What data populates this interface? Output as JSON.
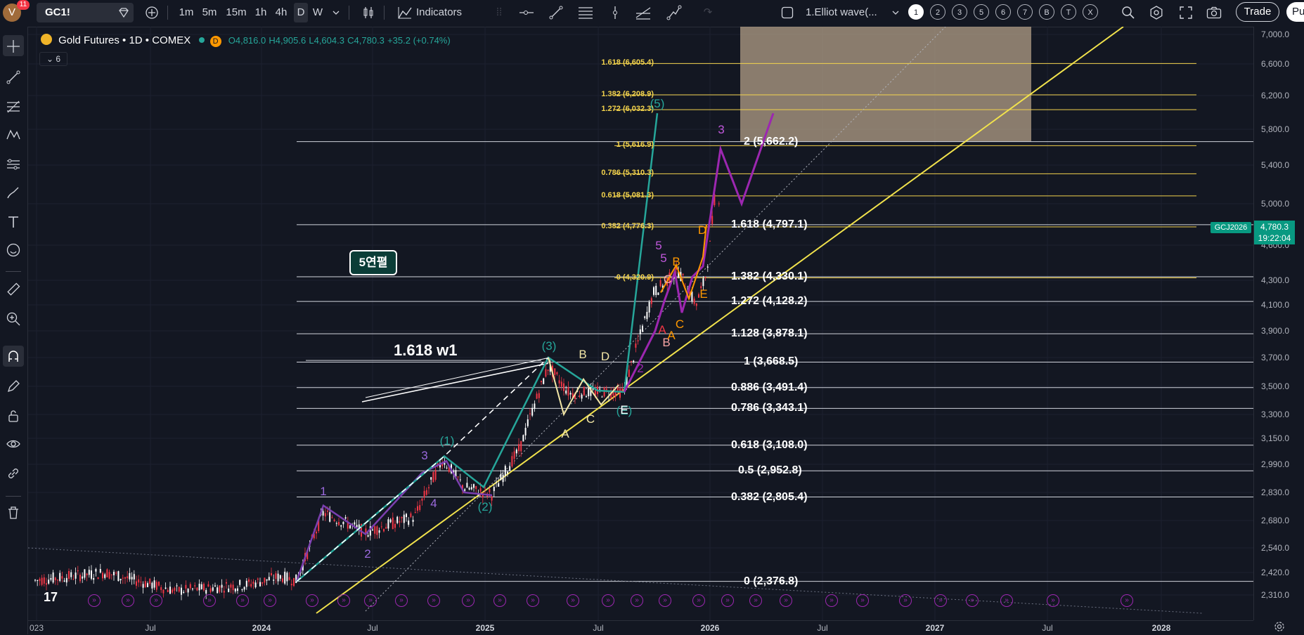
{
  "topbar": {
    "avatar_letter": "V",
    "notifications": "11",
    "symbol": "GC1!",
    "intervals": [
      "1m",
      "5m",
      "15m",
      "1h",
      "4h",
      "D",
      "W"
    ],
    "active_interval": "D",
    "indicators_label": "Indicators",
    "layout_name": "1.Elliot wave(...",
    "layout_tabs": [
      "1",
      "2",
      "3",
      "5",
      "6",
      "7",
      "B",
      "T",
      "X"
    ],
    "active_layout_tab": "1",
    "trade_label": "Trade",
    "publish_label": "Pu"
  },
  "legend": {
    "title": "Gold Futures • 1D • COMEX",
    "market_badge": "D",
    "open": "O4,816.0",
    "high": "H4,905.6",
    "low": "L4,604.3",
    "close": "C4,780.3",
    "change": "+35.2 (+0.74%)",
    "collapsed_count": "6"
  },
  "price_scale": {
    "labels": [
      {
        "price": 7000,
        "text": "7,000.0"
      },
      {
        "price": 6600,
        "text": "6,600.0"
      },
      {
        "price": 6200,
        "text": "6,200.0"
      },
      {
        "price": 5800,
        "text": "5,800.0"
      },
      {
        "price": 5400,
        "text": "5,400.0"
      },
      {
        "price": 5000,
        "text": "5,000.0"
      },
      {
        "price": 4600,
        "text": "4,600.0"
      },
      {
        "price": 4300,
        "text": "4,300.0"
      },
      {
        "price": 4100,
        "text": "4,100.0"
      },
      {
        "price": 3900,
        "text": "3,900.0"
      },
      {
        "price": 3700,
        "text": "3,700.0"
      },
      {
        "price": 3500,
        "text": "3,500.0"
      },
      {
        "price": 3300,
        "text": "3,300.0"
      },
      {
        "price": 3150,
        "text": "3,150.0"
      },
      {
        "price": 2990,
        "text": "2,990.0"
      },
      {
        "price": 2830,
        "text": "2,830.0"
      },
      {
        "price": 2680,
        "text": "2,680.0"
      },
      {
        "price": 2540,
        "text": "2,540.0"
      },
      {
        "price": 2420,
        "text": "2,420.0"
      },
      {
        "price": 2310,
        "text": "2,310.0"
      }
    ],
    "last_price": "4,780.3",
    "countdown": "19:22:04",
    "symbol_tag": "GCJ2026"
  },
  "time_scale": [
    {
      "text": "023",
      "year": false
    },
    {
      "text": "Jul",
      "year": false
    },
    {
      "text": "2024",
      "year": true
    },
    {
      "text": "Jul",
      "year": false
    },
    {
      "text": "2025",
      "year": true
    },
    {
      "text": "Jul",
      "year": false
    },
    {
      "text": "2026",
      "year": true
    },
    {
      "text": "Jul",
      "year": false
    },
    {
      "text": "2027",
      "year": true
    },
    {
      "text": "Jul",
      "year": false
    },
    {
      "text": "2028",
      "year": true
    }
  ],
  "fib_white": [
    {
      "text": "2 (5,662.2)",
      "price": 5662.2
    },
    {
      "text": "1.618 (4,797.1)",
      "price": 4797.1
    },
    {
      "text": "1.382 (4,330.1)",
      "price": 4330.1
    },
    {
      "text": "1.272 (4,128.2)",
      "price": 4128.2
    },
    {
      "text": "1.128 (3,878.1)",
      "price": 3878.1
    },
    {
      "text": "1 (3,668.5)",
      "price": 3668.5
    },
    {
      "text": "0.886 (3,491.4)",
      "price": 3491.4
    },
    {
      "text": "0.786 (3,343.1)",
      "price": 3343.1
    },
    {
      "text": "0.618 (3,108.0)",
      "price": 3108.0
    },
    {
      "text": "0.5 (2,952.8)",
      "price": 2952.8
    },
    {
      "text": "0.382 (2,805.4)",
      "price": 2805.4
    },
    {
      "text": "0 (2,376.8)",
      "price": 2376.8
    }
  ],
  "fib_yellow": [
    {
      "text": "1.618 (6,605.4)",
      "price": 6605.4
    },
    {
      "text": "1.382 (6,208.9)",
      "price": 6208.9
    },
    {
      "text": "1.272 (6,032.3)",
      "price": 6032.3
    },
    {
      "text": "1 (5,616.9)",
      "price": 5616.9
    },
    {
      "text": "0.786 (5,310.3)",
      "price": 5310.3
    },
    {
      "text": "0.618 (5,081.3)",
      "price": 5081.3
    },
    {
      "text": "0.382 (4,776.3)",
      "price": 4776.3
    },
    {
      "text": "0 (4,320.9)",
      "price": 4320.9
    }
  ],
  "annotations": {
    "callout": "5연펼",
    "w1_label": "1.618 w1",
    "tv_logo": "17"
  },
  "wave_labels": [
    {
      "text": "1",
      "color": "#9c6ade"
    },
    {
      "text": "2",
      "color": "#9c6ade"
    },
    {
      "text": "3",
      "color": "#9c6ade"
    },
    {
      "text": "4",
      "color": "#9c6ade"
    },
    {
      "text": "(1)",
      "color": "#26a69a"
    },
    {
      "text": "(2)",
      "color": "#26a69a"
    },
    {
      "text": "(3)",
      "color": "#26a69a"
    },
    {
      "text": "(E)",
      "color": "#26a69a"
    },
    {
      "text": "(5)",
      "color": "#26a69a"
    },
    {
      "text": "A",
      "color": "#f2e6a6"
    },
    {
      "text": "B",
      "color": "#f2e6a6"
    },
    {
      "text": "C",
      "color": "#f2e6a6"
    },
    {
      "text": "D",
      "color": "#f2e6a6"
    },
    {
      "text": "E",
      "color": "#ffffff"
    },
    {
      "text": "2",
      "color": "#9c27b0"
    },
    {
      "text": "3",
      "color": "#c158dc"
    },
    {
      "text": "5",
      "color": "#c158dc"
    },
    {
      "text": "5",
      "color": "#c158dc"
    },
    {
      "text": "B",
      "color": "#ff9800"
    },
    {
      "text": "C",
      "color": "#ff9800"
    },
    {
      "text": "D",
      "color": "#ff9800"
    },
    {
      "text": "E",
      "color": "#ff9800"
    },
    {
      "text": "A",
      "color": "#f23645"
    },
    {
      "text": "B",
      "color": "#f8a5a5"
    },
    {
      "text": "C",
      "color": "#f8a5a5"
    },
    {
      "text": "A",
      "color": "#ff9800"
    }
  ],
  "colors": {
    "background": "#131722",
    "fib_white": "#d1d4dc",
    "fib_yellow": "#f2d24c",
    "wave_teal": "#26a69a",
    "wave_purple": "#9c27b0",
    "up_candle": "#ffffff",
    "down_candle": "#f23645"
  }
}
